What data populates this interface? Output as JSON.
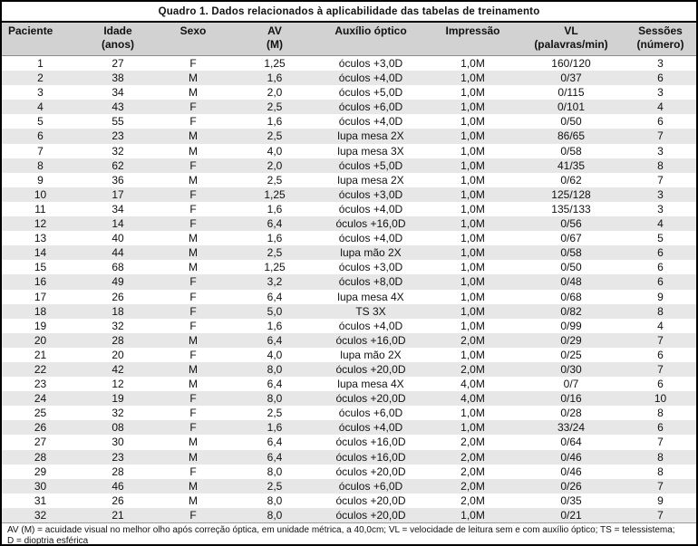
{
  "title": "Quadro 1. Dados relacionados à aplicabilidade das tabelas de treinamento",
  "colors": {
    "header_bg": "#d2d2d2",
    "row_alt_bg": "#e7e7e7",
    "border": "#000000",
    "text": "#111111"
  },
  "columns": [
    {
      "line1": "Paciente",
      "line2": ""
    },
    {
      "line1": "Idade",
      "line2": "(anos)"
    },
    {
      "line1": "Sexo",
      "line2": ""
    },
    {
      "line1": "AV",
      "line2": "(M)"
    },
    {
      "line1": "Auxílio óptico",
      "line2": ""
    },
    {
      "line1": "Impressão",
      "line2": ""
    },
    {
      "line1": "VL",
      "line2": "(palavras/min)"
    },
    {
      "line1": "Sessões",
      "line2": "(número)"
    }
  ],
  "rows": [
    [
      "1",
      "27",
      "F",
      "1,25",
      "óculos +3,0D",
      "1,0M",
      "160/120",
      "3"
    ],
    [
      "2",
      "38",
      "M",
      "1,6",
      "óculos +4,0D",
      "1,0M",
      "0/37",
      "6"
    ],
    [
      "3",
      "34",
      "M",
      "2,0",
      "óculos +5,0D",
      "1,0M",
      "0/115",
      "3"
    ],
    [
      "4",
      "43",
      "F",
      "2,5",
      "óculos +6,0D",
      "1,0M",
      "0/101",
      "4"
    ],
    [
      "5",
      "55",
      "F",
      "1,6",
      "óculos +4,0D",
      "1,0M",
      "0/50",
      "6"
    ],
    [
      "6",
      "23",
      "M",
      "2,5",
      "lupa mesa 2X",
      "1,0M",
      "86/65",
      "7"
    ],
    [
      "7",
      "32",
      "M",
      "4,0",
      "lupa mesa 3X",
      "1,0M",
      "0/58",
      "3"
    ],
    [
      "8",
      "62",
      "F",
      "2,0",
      "óculos +5,0D",
      "1,0M",
      "41/35",
      "8"
    ],
    [
      "9",
      "36",
      "M",
      "2,5",
      "lupa mesa 2X",
      "1,0M",
      "0/62",
      "7"
    ],
    [
      "10",
      "17",
      "F",
      "1,25",
      "óculos +3,0D",
      "1,0M",
      "125/128",
      "3"
    ],
    [
      "11",
      "34",
      "F",
      "1,6",
      "óculos +4,0D",
      "1,0M",
      "135/133",
      "3"
    ],
    [
      "12",
      "14",
      "F",
      "6,4",
      "óculos +16,0D",
      "1,0M",
      "0/56",
      "4"
    ],
    [
      "13",
      "40",
      "M",
      "1,6",
      "óculos +4,0D",
      "1,0M",
      "0/67",
      "5"
    ],
    [
      "14",
      "44",
      "M",
      "2,5",
      "lupa mão 2X",
      "1,0M",
      "0/58",
      "6"
    ],
    [
      "15",
      "68",
      "M",
      "1,25",
      "óculos +3,0D",
      "1,0M",
      "0/50",
      "6"
    ],
    [
      "16",
      "49",
      "F",
      "3,2",
      "óculos +8,0D",
      "1,0M",
      "0/48",
      "6"
    ],
    [
      "17",
      "26",
      "F",
      "6,4",
      "lupa mesa 4X",
      "1,0M",
      "0/68",
      "9"
    ],
    [
      "18",
      "18",
      "F",
      "5,0",
      "TS 3X",
      "1,0M",
      "0/82",
      "8"
    ],
    [
      "19",
      "32",
      "F",
      "1,6",
      "óculos +4,0D",
      "1,0M",
      "0/99",
      "4"
    ],
    [
      "20",
      "28",
      "M",
      "6,4",
      "óculos +16,0D",
      "2,0M",
      "0/29",
      "7"
    ],
    [
      "21",
      "20",
      "F",
      "4,0",
      "lupa mão 2X",
      "1,0M",
      "0/25",
      "6"
    ],
    [
      "22",
      "42",
      "M",
      "8,0",
      "óculos +20,0D",
      "2,0M",
      "0/30",
      "7"
    ],
    [
      "23",
      "12",
      "M",
      "6,4",
      "lupa mesa 4X",
      "4,0M",
      "0/7",
      "6"
    ],
    [
      "24",
      "19",
      "F",
      "8,0",
      "óculos +20,0D",
      "4,0M",
      "0/16",
      "10"
    ],
    [
      "25",
      "32",
      "F",
      "2,5",
      "óculos +6,0D",
      "1,0M",
      "0/28",
      "8"
    ],
    [
      "26",
      "08",
      "F",
      "1,6",
      "óculos +4,0D",
      "1,0M",
      "33/24",
      "6"
    ],
    [
      "27",
      "30",
      "M",
      "6,4",
      "óculos +16,0D",
      "2,0M",
      "0/64",
      "7"
    ],
    [
      "28",
      "23",
      "M",
      "6,4",
      "óculos +16,0D",
      "2,0M",
      "0/46",
      "8"
    ],
    [
      "29",
      "28",
      "F",
      "8,0",
      "óculos +20,0D",
      "2,0M",
      "0/46",
      "8"
    ],
    [
      "30",
      "46",
      "M",
      "2,5",
      "óculos +6,0D",
      "2,0M",
      "0/26",
      "7"
    ],
    [
      "31",
      "26",
      "M",
      "8,0",
      "óculos +20,0D",
      "2,0M",
      "0/35",
      "9"
    ],
    [
      "32",
      "21",
      "F",
      "8,0",
      "óculos +20,0D",
      "1,0M",
      "0/21",
      "7"
    ]
  ],
  "footnote": {
    "line1": "AV (M) = acuidade visual no melhor olho após correção óptica, em unidade métrica, a 40,0cm; VL = velocidade de leitura sem e com auxílio óptico; TS = telessistema;",
    "line2": "D = dioptria esférica"
  }
}
